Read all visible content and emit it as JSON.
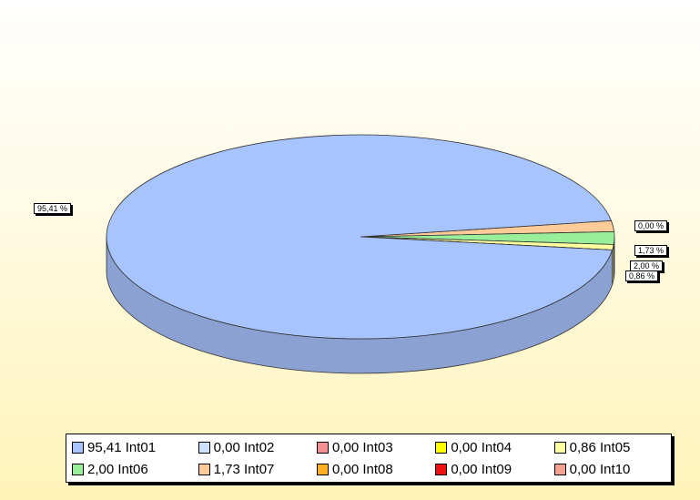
{
  "chart_data": {
    "type": "pie",
    "title": "",
    "legend_position": "bottom",
    "slices": [
      {
        "name": "Int01",
        "value": 95.41,
        "value_text": "95,41",
        "label": "95,41 %",
        "color": "#a8c4ff"
      },
      {
        "name": "Int02",
        "value": 0.0,
        "value_text": "0,00",
        "label": "0,00 %",
        "color": "#cce0ff"
      },
      {
        "name": "Int03",
        "value": 0.0,
        "value_text": "0,00",
        "label": "",
        "color": "#f09090"
      },
      {
        "name": "Int04",
        "value": 0.0,
        "value_text": "0,00",
        "label": "",
        "color": "#ffff00"
      },
      {
        "name": "Int05",
        "value": 0.86,
        "value_text": "0,86",
        "label": "0,86 %",
        "color": "#ffffa0"
      },
      {
        "name": "Int06",
        "value": 2.0,
        "value_text": "2,00",
        "label": "2,00 %",
        "color": "#99ee99"
      },
      {
        "name": "Int07",
        "value": 1.73,
        "value_text": "1,73",
        "label": "1,73 %",
        "color": "#ffcc99"
      },
      {
        "name": "Int08",
        "value": 0.0,
        "value_text": "0,00",
        "label": "",
        "color": "#ffb020"
      },
      {
        "name": "Int09",
        "value": 0.0,
        "value_text": "0,00",
        "label": "",
        "color": "#ee1111"
      },
      {
        "name": "Int10",
        "value": 0.0,
        "value_text": "0,00",
        "label": "",
        "color": "#f4a090"
      }
    ]
  }
}
